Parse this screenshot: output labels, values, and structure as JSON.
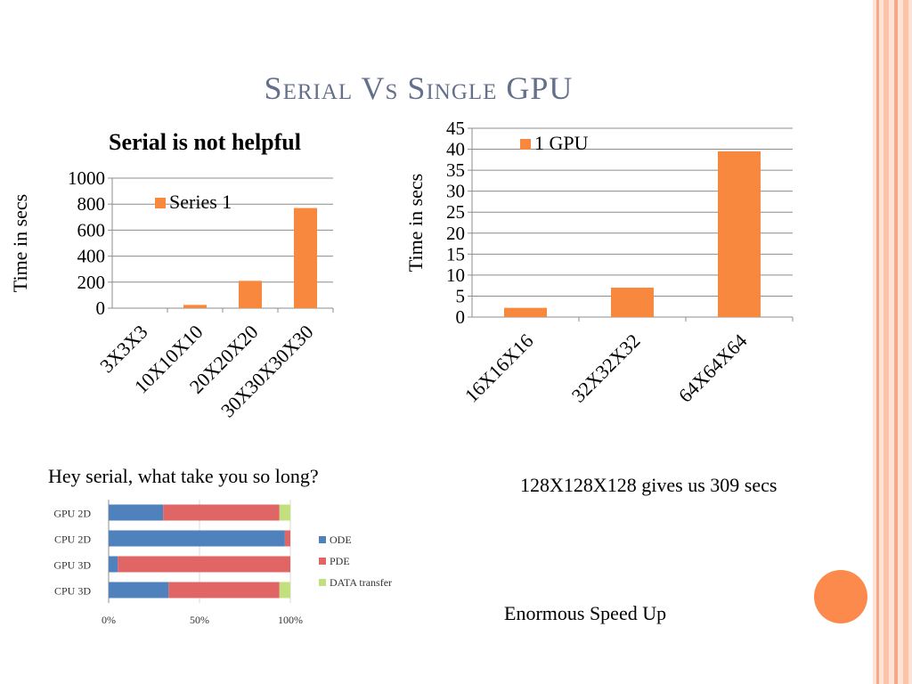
{
  "slide": {
    "title": "Serial Vs Single GPU",
    "caption_left": "Hey serial, what take you so long?",
    "caption_right": "128X128X128 gives us 309 secs",
    "caption_bottom": "Enormous Speed Up"
  },
  "colors": {
    "bar": "#f7883d",
    "ode": "#4f81bd",
    "pde": "#e06666",
    "data": "#c3e07e",
    "title": "#64708a",
    "accent": "#fb8a4c"
  },
  "chart_data": [
    {
      "type": "bar",
      "title": "Serial is not helpful",
      "ylabel": "Time in secs",
      "xlabel": "",
      "categories": [
        "3X3X3",
        "10X10X10",
        "20X20X20",
        "30X30X30X30"
      ],
      "series": [
        {
          "name": "Series 1",
          "values": [
            0,
            25,
            210,
            770
          ]
        }
      ],
      "ylim": [
        0,
        1000
      ],
      "yticks": [
        "0",
        "200",
        "400",
        "600",
        "800",
        "1000"
      ],
      "legend": "top-center",
      "grid": true
    },
    {
      "type": "bar",
      "title": "",
      "ylabel": "Time in secs",
      "xlabel": "",
      "categories": [
        "16X16X16",
        "32X32X32",
        "64X64X64"
      ],
      "series": [
        {
          "name": "1 GPU",
          "values": [
            2.2,
            7,
            39.5
          ]
        }
      ],
      "ylim": [
        0,
        45
      ],
      "yticks": [
        "0",
        "5",
        "10",
        "15",
        "20",
        "25",
        "30",
        "35",
        "40",
        "45"
      ],
      "legend": "top-left",
      "grid": true
    },
    {
      "type": "bar",
      "orientation": "horizontal-stacked-100",
      "title": "",
      "categories": [
        "GPU 2D",
        "CPU 2D",
        "GPU 3D",
        "CPU 3D"
      ],
      "series": [
        {
          "name": "ODE",
          "values": [
            30,
            97,
            5,
            33
          ]
        },
        {
          "name": "PDE",
          "values": [
            64,
            3,
            95,
            61
          ]
        },
        {
          "name": "DATA transfer",
          "values": [
            6,
            0,
            0,
            6
          ]
        }
      ],
      "xticks": [
        "0%",
        "50%",
        "100%"
      ],
      "xlim": [
        0,
        100
      ],
      "legend": "right"
    }
  ]
}
